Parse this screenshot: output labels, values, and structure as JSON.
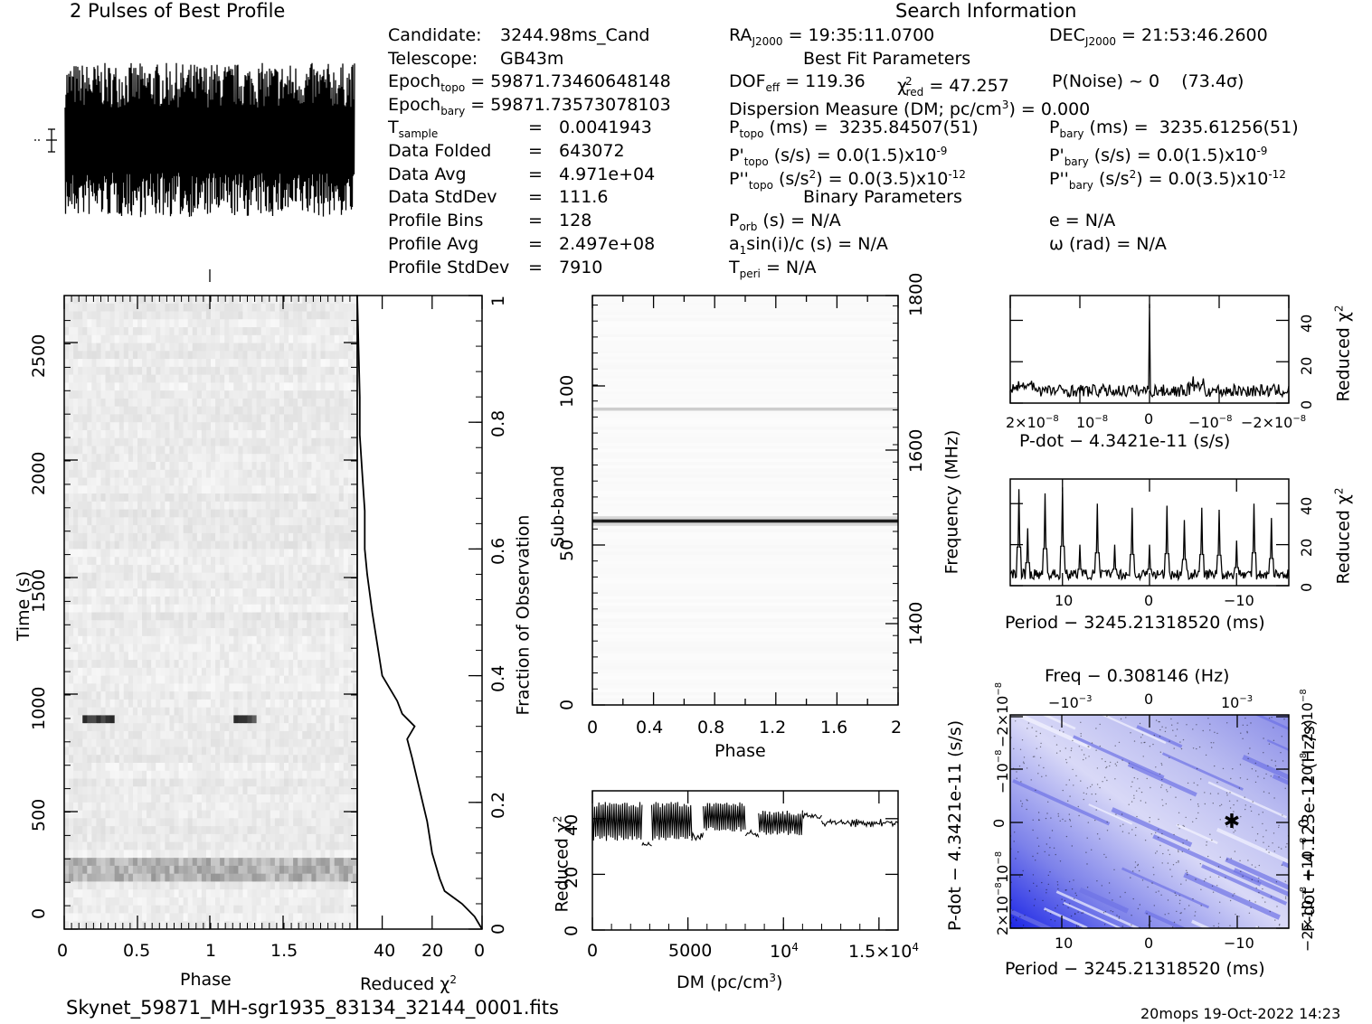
{
  "page_title": "2 Pulses of Best Profile",
  "search_title": "Search Information",
  "filename": "Skynet_59871_MH-sgr1935_83134_32144_0001.fits",
  "footer_right": "20mops 19-Oct-2022 14:23",
  "candidate": {
    "candidate_label": "Candidate:",
    "candidate_value": "3244.98ms_Cand",
    "telescope_label": "Telescope:",
    "telescope_value": "GB43m",
    "epoch_topo_label": "Epoch",
    "epoch_topo_sub": "topo",
    "epoch_topo_value": "= 59871.73460648148",
    "epoch_bary_label": "Epoch",
    "epoch_bary_sub": "bary",
    "epoch_bary_value": "= 59871.73573078103",
    "tsample_label": "T",
    "tsample_sub": "sample",
    "tsample_value": "=   0.0041943",
    "data_folded_label": "Data Folded",
    "data_folded_value": "=   643072",
    "data_avg_label": "Data Avg",
    "data_avg_value": "=   4.971e+04",
    "data_std_label": "Data StdDev",
    "data_std_value": "=   111.6",
    "profile_bins_label": "Profile Bins",
    "profile_bins_value": "=   128",
    "profile_avg_label": "Profile Avg",
    "profile_avg_value": "=   2.497e+08",
    "profile_std_label": "Profile StdDev",
    "profile_std_value": "=   7910"
  },
  "search": {
    "ra": "= 19:35:11.0700",
    "dec": "= 21:53:46.2600",
    "best_fit_title": "Best Fit Parameters",
    "dof": "= 119.36",
    "chi2": "= 47.257",
    "pnoise": "P(Noise) ~ 0    (73.4σ)",
    "dm": "Dispersion Measure (DM; pc/cm",
    "dm_value": ") = 0.000",
    "p_topo": "(ms) =  3235.84507(51)",
    "p_bary": "(ms) =  3235.61256(51)",
    "pd_topo": "(s/s) = 0.0(1.5)x10",
    "pd_bary": "(s/s) = 0.0(1.5)x10",
    "pd_exp": "-9",
    "pdd_topo": "(s/s",
    "pdd_value": ") = 0.0(3.5)x10",
    "pdd_exp": "-12",
    "binary_title": "Binary Parameters",
    "porb": "(s) = N/A",
    "e": "e = N/A",
    "a1": "a",
    "a1_rest": "sin(i)/c (s) = N/A",
    "omega": "ω (rad) = N/A",
    "tperi": "= N/A"
  },
  "chart_data": [
    {
      "id": "pulse_profile",
      "type": "line",
      "title": "2 Pulses of Best Profile",
      "x": "phase 0-2 (two pulses)",
      "shape": "dense noise-like oscillation spanning roughly the full band"
    },
    {
      "id": "time_phase",
      "type": "heatmap",
      "xlabel": "Phase",
      "ylabel": "Time (s)",
      "x_ticks": [
        "0",
        "0.5",
        "1",
        "1.5"
      ],
      "y_ticks": [
        "0",
        "500",
        "1000",
        "1500",
        "2000",
        "2500"
      ],
      "xlim": [
        0,
        2
      ],
      "ylim": [
        0,
        2700
      ]
    },
    {
      "id": "reduced_chi2_time",
      "type": "line",
      "xlabel": "Reduced χ",
      "ylabel": "Fraction of Observation",
      "x_ticks": [
        "40",
        "20",
        "0"
      ],
      "y_ticks": [
        "0",
        "0.2",
        "0.4",
        "0.6",
        "0.8",
        "1"
      ],
      "xlim": [
        50,
        0
      ],
      "ylim": [
        0,
        1
      ],
      "points": [
        [
          0,
          0
        ],
        [
          3,
          0.02
        ],
        [
          8,
          0.04
        ],
        [
          15,
          0.06
        ],
        [
          17,
          0.08
        ],
        [
          20,
          0.12
        ],
        [
          22,
          0.17
        ],
        [
          25,
          0.22
        ],
        [
          28,
          0.27
        ],
        [
          30,
          0.3
        ],
        [
          27,
          0.32
        ],
        [
          32,
          0.34
        ],
        [
          34,
          0.36
        ],
        [
          40,
          0.4
        ],
        [
          42,
          0.45
        ],
        [
          44,
          0.5
        ],
        [
          46,
          0.56
        ],
        [
          47,
          0.6
        ],
        [
          47,
          0.66
        ],
        [
          48,
          0.72
        ],
        [
          49,
          0.78
        ],
        [
          49,
          0.84
        ],
        [
          49.5,
          0.92
        ],
        [
          50,
          1
        ]
      ]
    },
    {
      "id": "subband_phase",
      "type": "heatmap",
      "xlabel": "Phase",
      "ylabel": "Sub-band",
      "y2label": "Frequency (MHz)",
      "x_ticks": [
        "0",
        "0.4",
        "0.8",
        "1.2",
        "1.6",
        "2"
      ],
      "y_ticks": [
        "0",
        "50",
        "100"
      ],
      "y2_ticks": [
        "1400",
        "1600",
        "1800"
      ],
      "xlim": [
        0,
        2
      ],
      "ylim": [
        0,
        128
      ],
      "bright_subbands": [
        57,
        92
      ]
    },
    {
      "id": "dm_curve",
      "type": "line",
      "xlabel": "DM (pc/cm",
      "ylabel": "Reduced χ",
      "x_ticks": [
        "0",
        "5000",
        "10",
        "1.5×10"
      ],
      "y_ticks": [
        "0",
        "20",
        "40"
      ],
      "xlim": [
        0,
        16000
      ],
      "ylim": [
        0,
        50
      ],
      "segments": [
        {
          "x0": 0,
          "x1": 2600,
          "hi": 46,
          "lo": 32
        },
        {
          "x0": 2600,
          "x1": 3100,
          "hi": 32,
          "lo": 30
        },
        {
          "x0": 3100,
          "x1": 5200,
          "hi": 46,
          "lo": 32
        },
        {
          "x0": 5200,
          "x1": 5800,
          "hi": 34,
          "lo": 33
        },
        {
          "x0": 5800,
          "x1": 8000,
          "hi": 46,
          "lo": 35
        },
        {
          "x0": 8000,
          "x1": 8700,
          "hi": 35,
          "lo": 34
        },
        {
          "x0": 8700,
          "x1": 11000,
          "hi": 43,
          "lo": 34
        },
        {
          "x0": 11000,
          "x1": 12000,
          "hi": 42,
          "lo": 40
        },
        {
          "x0": 12000,
          "x1": 16000,
          "hi": 40,
          "lo": 37
        }
      ]
    },
    {
      "id": "pdot_chi2",
      "type": "line",
      "xlabel": "P-dot − 4.3421e-11 (s/s)",
      "ylabel": "Reduced χ",
      "x_ticks": [
        "2×10",
        "10",
        "0",
        "−10",
        "−2×10"
      ],
      "y_ticks": [
        "0",
        "20",
        "40"
      ],
      "ylim": [
        0,
        50
      ],
      "peak": 48
    },
    {
      "id": "period_chi2",
      "type": "line",
      "xlabel": "Period − 3245.21318520 (ms)",
      "ylabel": "Reduced χ",
      "x_ticks": [
        "10",
        "0",
        "−10"
      ],
      "y_ticks": [
        "0",
        "20",
        "40"
      ],
      "ylim": [
        0,
        50
      ],
      "peaks": [
        [
          -14,
          33
        ],
        [
          -12,
          40
        ],
        [
          -10,
          22
        ],
        [
          -8,
          37
        ],
        [
          -6,
          38
        ],
        [
          -4,
          32
        ],
        [
          -2,
          39
        ],
        [
          0,
          20
        ],
        [
          2,
          38
        ],
        [
          4,
          20
        ],
        [
          6,
          40
        ],
        [
          8,
          20
        ],
        [
          10,
          48
        ],
        [
          12,
          45
        ],
        [
          14,
          28
        ],
        [
          15,
          47
        ]
      ]
    },
    {
      "id": "p_pdot_plane",
      "type": "heatmap",
      "xlabel": "Period − 3245.21318520 (ms)",
      "ylabel": "P-dot − 4.3421e-11 (s/s)",
      "x2label": "Freq − 0.308146 (Hz)",
      "y2label": "F-dot + 4.123e-12 (Hz/s)",
      "x_ticks": [
        "10",
        "0",
        "−10"
      ],
      "x2_ticks": [
        "−10",
        "0",
        "10"
      ],
      "y_ticks": [
        "2×10",
        "10",
        "0",
        "−10",
        "−2×10"
      ],
      "y2_ticks": [
        "−2×10",
        "−10",
        "0",
        "10",
        "2×10"
      ],
      "colors": {
        "light": "#ffffff",
        "mid": "#c6c6f2",
        "dark": "#1e28e0"
      }
    }
  ]
}
